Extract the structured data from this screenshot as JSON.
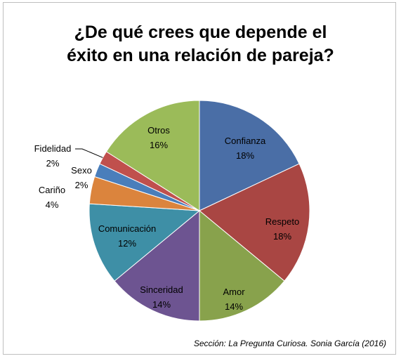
{
  "chart_data": {
    "type": "pie",
    "title_lines": [
      "¿De qué crees que depende el",
      "éxito en una relación de pareja?"
    ],
    "slices": [
      {
        "label": "Confianza",
        "value": 18,
        "color": "#4a6ea6"
      },
      {
        "label": "Respeto",
        "value": 18,
        "color": "#a94643"
      },
      {
        "label": "Amor",
        "value": 14,
        "color": "#88a24c"
      },
      {
        "label": "Sinceridad",
        "value": 14,
        "color": "#6d5491"
      },
      {
        "label": "Comunicación",
        "value": 12,
        "color": "#3e8fa6"
      },
      {
        "label": "Cariño",
        "value": 4,
        "color": "#db843d"
      },
      {
        "label": "Sexo",
        "value": 2,
        "color": "#4a7ebb"
      },
      {
        "label": "Fidelidad",
        "value": 2,
        "color": "#c0504d"
      },
      {
        "label": "Otros",
        "value": 16,
        "color": "#9bbb59"
      }
    ],
    "value_suffix": "%"
  },
  "source": "Sección: La Pregunta Curiosa. Sonia García (2016)"
}
